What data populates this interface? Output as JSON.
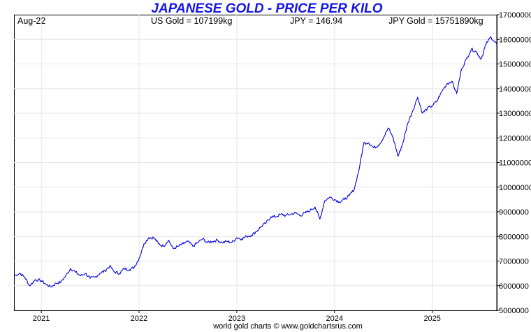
{
  "chart_data": {
    "type": "line",
    "title": "JAPANESE GOLD - PRICE PER KILO",
    "header": {
      "date": "Aug-22",
      "us_gold": "US Gold = 107199kg",
      "jpy": "JPY = 146.94",
      "jpy_gold": "JPY Gold = 15751890kg"
    },
    "footer": "world gold charts © www.goldchartsrus.com",
    "ylim": [
      5000000,
      17000000
    ],
    "y_ticks": [
      5000000,
      6000000,
      7000000,
      8000000,
      9000000,
      10000000,
      11000000,
      12000000,
      13000000,
      14000000,
      15000000,
      16000000,
      17000000
    ],
    "y_tick_labels": [
      "5000000",
      "6000000",
      "7000000",
      "8000000",
      "9000000",
      "10000000",
      "11000000",
      "12000000",
      "13000000",
      "14000000",
      "15000000",
      "16000000",
      "17000000"
    ],
    "xlim": [
      2020.72,
      2025.66
    ],
    "x_ticks": [
      2021,
      2022,
      2023,
      2024,
      2025
    ],
    "x_tick_labels": [
      "2021",
      "2022",
      "2023",
      "2024",
      "2025"
    ],
    "line_color": "#0000e0",
    "grid": true,
    "series": [
      {
        "x": [
          2020.72,
          2020.78,
          2020.83,
          2020.88,
          2020.94,
          2021.0,
          2021.05,
          2021.1,
          2021.15,
          2021.2,
          2021.25,
          2021.3,
          2021.35,
          2021.4,
          2021.45,
          2021.5,
          2021.55,
          2021.6,
          2021.65,
          2021.7,
          2021.75,
          2021.8,
          2021.85,
          2021.9,
          2021.95,
          2022.0,
          2022.05,
          2022.1,
          2022.15,
          2022.2,
          2022.25,
          2022.3,
          2022.35,
          2022.4,
          2022.45,
          2022.5,
          2022.55,
          2022.6,
          2022.65,
          2022.7,
          2022.75,
          2022.8,
          2022.85,
          2022.9,
          2022.95,
          2023.0,
          2023.05,
          2023.1,
          2023.15,
          2023.2,
          2023.25,
          2023.3,
          2023.35,
          2023.4,
          2023.45,
          2023.5,
          2023.55,
          2023.6,
          2023.65,
          2023.7,
          2023.75,
          2023.8,
          2023.85,
          2023.9,
          2023.95,
          2024.0,
          2024.05,
          2024.1,
          2024.15,
          2024.2,
          2024.25,
          2024.3,
          2024.35,
          2024.4,
          2024.45,
          2024.5,
          2024.55,
          2024.6,
          2024.65,
          2024.7,
          2024.75,
          2024.8,
          2024.85,
          2024.9,
          2024.95,
          2025.0,
          2025.05,
          2025.1,
          2025.15,
          2025.2,
          2025.25,
          2025.3,
          2025.35,
          2025.4,
          2025.45,
          2025.5,
          2025.55,
          2025.6,
          2025.66
        ],
        "y": [
          6400000,
          6500000,
          6350000,
          6000000,
          6250000,
          6200000,
          6050000,
          5950000,
          6100000,
          6150000,
          6400000,
          6700000,
          6550000,
          6400000,
          6500000,
          6300000,
          6350000,
          6500000,
          6600000,
          6800000,
          6550000,
          6500000,
          6700000,
          6650000,
          6750000,
          7100000,
          7700000,
          7950000,
          7950000,
          7700000,
          7600000,
          7850000,
          7500000,
          7600000,
          7700000,
          7800000,
          7600000,
          7750000,
          7900000,
          7750000,
          7800000,
          7850000,
          7750000,
          7800000,
          7750000,
          7950000,
          7900000,
          8000000,
          8050000,
          8200000,
          8400000,
          8550000,
          8800000,
          8800000,
          8900000,
          8850000,
          8900000,
          8950000,
          8850000,
          8950000,
          9050000,
          9200000,
          8700000,
          9450000,
          9600000,
          9500000,
          9400000,
          9500000,
          9650000,
          9900000,
          10700000,
          11800000,
          11800000,
          11600000,
          11700000,
          12000000,
          12400000,
          12000000,
          11250000,
          11800000,
          12600000,
          13100000,
          13650000,
          13000000,
          13200000,
          13300000,
          13500000,
          13900000,
          14200000,
          14300000,
          13800000,
          14800000,
          15200000,
          15600000,
          15500000,
          15200000,
          15800000,
          16100000,
          15800000
        ]
      }
    ]
  }
}
